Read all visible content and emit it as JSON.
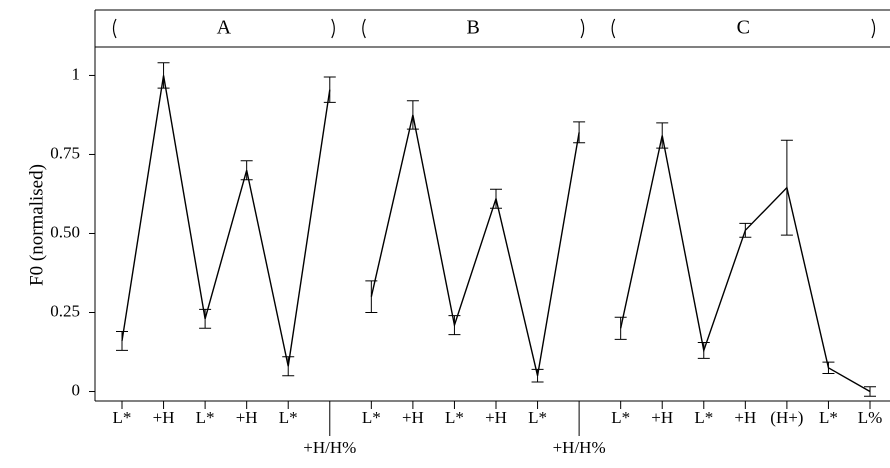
{
  "chart_data": {
    "type": "line",
    "y_label": "F0 (normalised)",
    "categories": [
      "L*",
      "+H",
      "L*",
      "+H",
      "L*",
      "+H/H%",
      "L*",
      "+H",
      "L*",
      "+H",
      "L*",
      "+H/H%",
      "L*",
      "+H",
      "L*",
      "+H",
      "(H+)",
      "L*",
      "L%"
    ],
    "series": [
      {
        "name": "A",
        "color": "#000000",
        "values": [
          0.16,
          1.0,
          0.23,
          0.7,
          0.08,
          0.955,
          null,
          null,
          null,
          null,
          null,
          null,
          null,
          null,
          null,
          null,
          null,
          null,
          null
        ],
        "errors": [
          0.03,
          0.04,
          0.03,
          0.03,
          0.03,
          0.04,
          null,
          null,
          null,
          null,
          null,
          null,
          null,
          null,
          null,
          null,
          null,
          null,
          null
        ]
      },
      {
        "name": "B",
        "color": "#000000",
        "values": [
          null,
          null,
          null,
          null,
          null,
          null,
          0.3,
          0.875,
          0.21,
          0.61,
          0.05,
          0.82,
          null,
          null,
          null,
          null,
          null,
          null,
          null
        ],
        "errors": [
          null,
          null,
          null,
          null,
          null,
          null,
          0.05,
          0.045,
          0.03,
          0.03,
          0.02,
          0.033,
          null,
          null,
          null,
          null,
          null,
          null,
          null
        ]
      },
      {
        "name": "C",
        "color": "#000000",
        "values": [
          null,
          null,
          null,
          null,
          null,
          null,
          null,
          null,
          null,
          null,
          null,
          null,
          0.2,
          0.81,
          0.13,
          0.51,
          0.645,
          0.075,
          0.0
        ],
        "errors": [
          null,
          null,
          null,
          null,
          null,
          null,
          null,
          null,
          null,
          null,
          null,
          null,
          0.035,
          0.04,
          0.025,
          0.022,
          0.15,
          0.018,
          0.015
        ]
      }
    ],
    "ylim": [
      -0.03,
      1.09
    ],
    "yticks": [
      0,
      0.25,
      {
        "value": 0.5,
        "label": "0.50"
      },
      0.75,
      1
    ]
  }
}
